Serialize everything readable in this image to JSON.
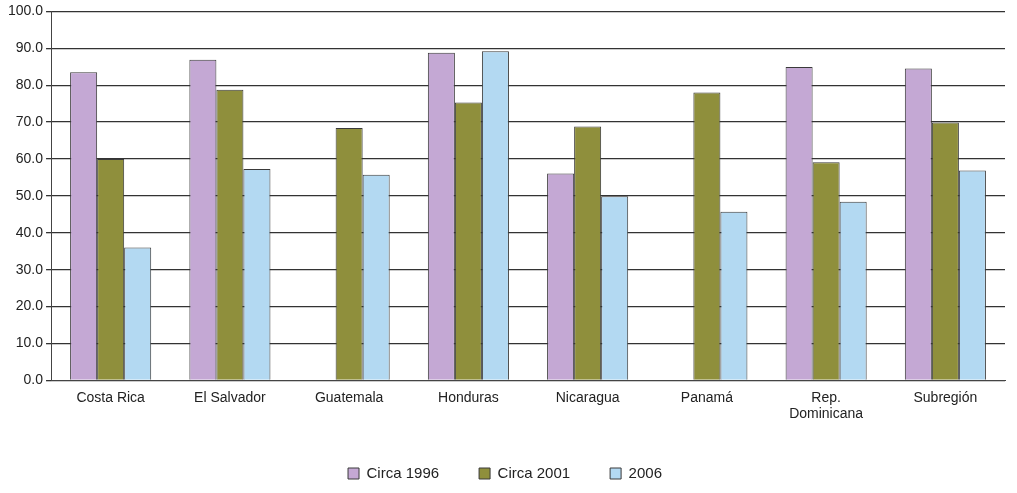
{
  "chart_data": {
    "type": "bar",
    "categories": [
      "Costa Rica",
      "El Salvador",
      "Guatemala",
      "Honduras",
      "Nicaragua",
      "Panamá",
      "Rep. Dominicana",
      "Subregión"
    ],
    "series": [
      {
        "name": "Circa 1996",
        "color": "#c4a8d4",
        "values": [
          83.5,
          86.9,
          null,
          88.8,
          56.1,
          null,
          84.9,
          84.5
        ]
      },
      {
        "name": "Circa 2001",
        "color": "#8f8f3c",
        "values": [
          60.0,
          78.8,
          68.4,
          75.3,
          68.8,
          78.0,
          59.1,
          69.9
        ]
      },
      {
        "name": "2006",
        "color": "#b3d9f2",
        "values": [
          36.0,
          57.3,
          55.7,
          89.2,
          49.9,
          45.7,
          48.4,
          56.9
        ]
      }
    ],
    "ylim": [
      0,
      100
    ],
    "yticks": [
      {
        "value": 0,
        "label": "0.0"
      },
      {
        "value": 10,
        "label": "10.0"
      },
      {
        "value": 20,
        "label": "20.0"
      },
      {
        "value": 30,
        "label": "30.0"
      },
      {
        "value": 40,
        "label": "40.0"
      },
      {
        "value": 50,
        "label": "50.0"
      },
      {
        "value": 60,
        "label": "60.0"
      },
      {
        "value": 70,
        "label": "70.0"
      },
      {
        "value": 80,
        "label": "80.0"
      },
      {
        "value": 90,
        "label": "90.0"
      },
      {
        "value": 100,
        "label": "100.0"
      }
    ],
    "grid": "y",
    "legend": "bottom"
  }
}
